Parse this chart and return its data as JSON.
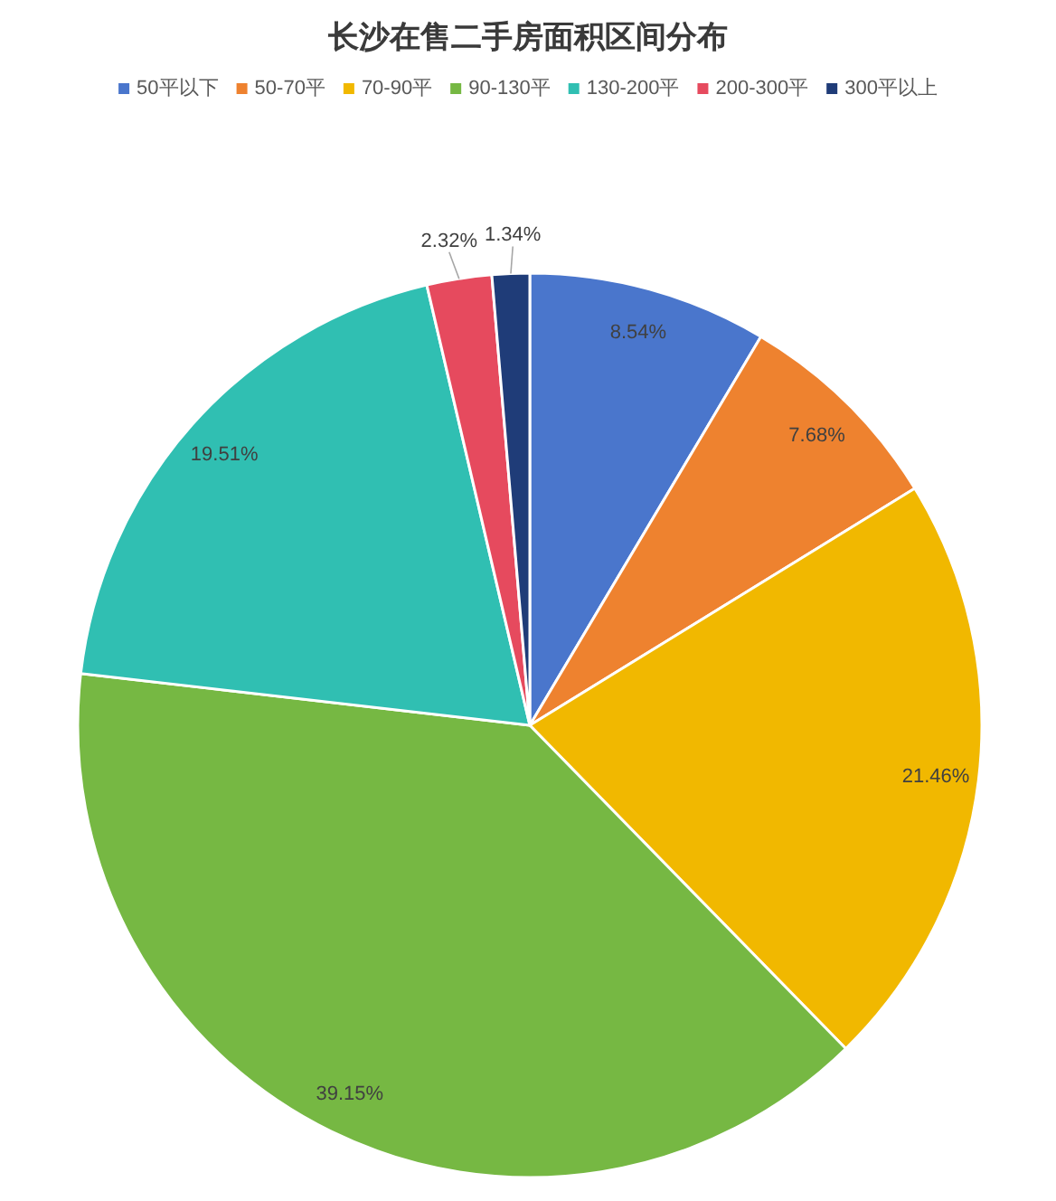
{
  "chart_data": {
    "type": "pie",
    "title": "长沙在售二手房面积区间分布",
    "categories": [
      "50平以下",
      "50-70平",
      "70-90平",
      "90-130平",
      "130-200平",
      "200-300平",
      "300平以上"
    ],
    "values": [
      8.54,
      7.68,
      21.46,
      39.15,
      19.51,
      2.32,
      1.34
    ],
    "value_labels": [
      "8.54%",
      "7.68%",
      "21.46%",
      "39.15%",
      "19.51%",
      "2.32%",
      "1.34%"
    ],
    "colors": [
      "#4a76cc",
      "#ee822f",
      "#f1b800",
      "#76b843",
      "#30bfb2",
      "#e64a5e",
      "#1f3c78"
    ],
    "legend": "top"
  }
}
